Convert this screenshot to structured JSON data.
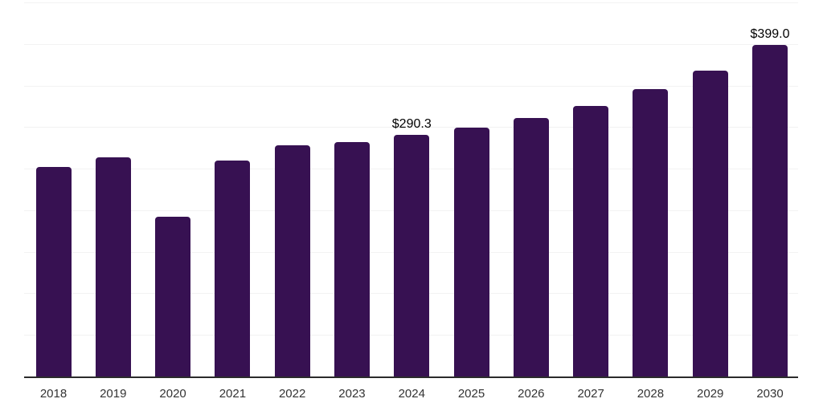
{
  "chart_data": {
    "type": "bar",
    "title": "",
    "xlabel": "",
    "ylabel": "",
    "categories": [
      "2018",
      "2019",
      "2020",
      "2021",
      "2022",
      "2023",
      "2024",
      "2025",
      "2026",
      "2027",
      "2028",
      "2029",
      "2030"
    ],
    "values": [
      252.5,
      264.0,
      192.3,
      259.6,
      278.2,
      282.3,
      290.3,
      299.0,
      310.8,
      325.2,
      345.6,
      368.0,
      399.0
    ],
    "data_labels": [
      {
        "index": 6,
        "text": "$290.3"
      },
      {
        "index": 12,
        "text": "$399.0"
      }
    ],
    "ylim": [
      0,
      450
    ],
    "gridline_step": 50,
    "grid": true,
    "y_axis_labels_visible": false,
    "legend_position": "none",
    "colors": {
      "bar": "#371152",
      "axis_line": "#2b2b2b",
      "gridline": "#f2f2f2",
      "tick_label": "#333333",
      "data_label": "#000000",
      "background": "#ffffff"
    }
  }
}
